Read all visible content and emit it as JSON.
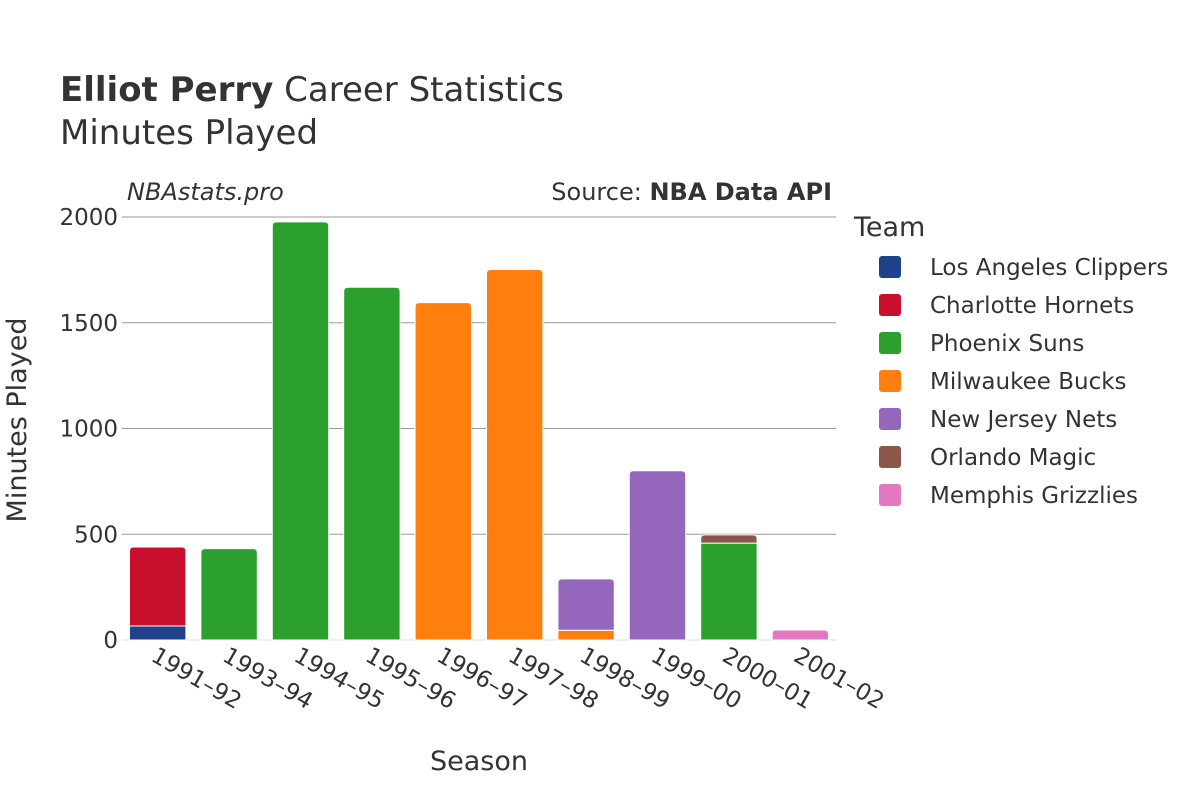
{
  "chart_data": {
    "type": "bar",
    "stacked": true,
    "title_bold": "Elliot Perry",
    "title_rest": " Career Statistics",
    "subtitle": "Minutes Played",
    "watermark": "NBAstats.pro",
    "source_label": "Source: ",
    "source_value": "NBA Data API",
    "xlabel": "Season",
    "ylabel": "Minutes Played",
    "ylim": [
      0,
      2000
    ],
    "yticks": [
      0,
      500,
      1000,
      1500,
      2000
    ],
    "grid": true,
    "legend_title": "Team",
    "legend_position": "right",
    "categories": [
      "1991–92",
      "1993–94",
      "1994–95",
      "1995–96",
      "1996–97",
      "1997–98",
      "1998–99",
      "1999–00",
      "2000–01",
      "2001–02"
    ],
    "series": [
      {
        "name": "Los Angeles Clippers",
        "color": "#1f428a",
        "values": [
          66,
          0,
          0,
          0,
          0,
          0,
          0,
          0,
          0,
          0
        ]
      },
      {
        "name": "Charlotte Hornets",
        "color": "#c8102e",
        "values": [
          374,
          0,
          0,
          0,
          0,
          0,
          0,
          0,
          0,
          0
        ]
      },
      {
        "name": "Phoenix Suns",
        "color": "#2ca02c",
        "values": [
          0,
          432,
          1977,
          1668,
          0,
          0,
          0,
          0,
          458,
          0
        ]
      },
      {
        "name": "Milwaukee Bucks",
        "color": "#ff7f0e",
        "values": [
          0,
          0,
          0,
          0,
          1595,
          1752,
          46,
          0,
          0,
          0
        ]
      },
      {
        "name": "New Jersey Nets",
        "color": "#9467bd",
        "values": [
          0,
          0,
          0,
          0,
          0,
          0,
          243,
          800,
          0,
          0
        ]
      },
      {
        "name": "Orlando Magic",
        "color": "#8c564b",
        "values": [
          0,
          0,
          0,
          0,
          0,
          0,
          0,
          0,
          39,
          0
        ]
      },
      {
        "name": "Memphis Grizzlies",
        "color": "#e377c2",
        "values": [
          0,
          0,
          0,
          0,
          0,
          0,
          0,
          0,
          0,
          47
        ]
      }
    ]
  }
}
